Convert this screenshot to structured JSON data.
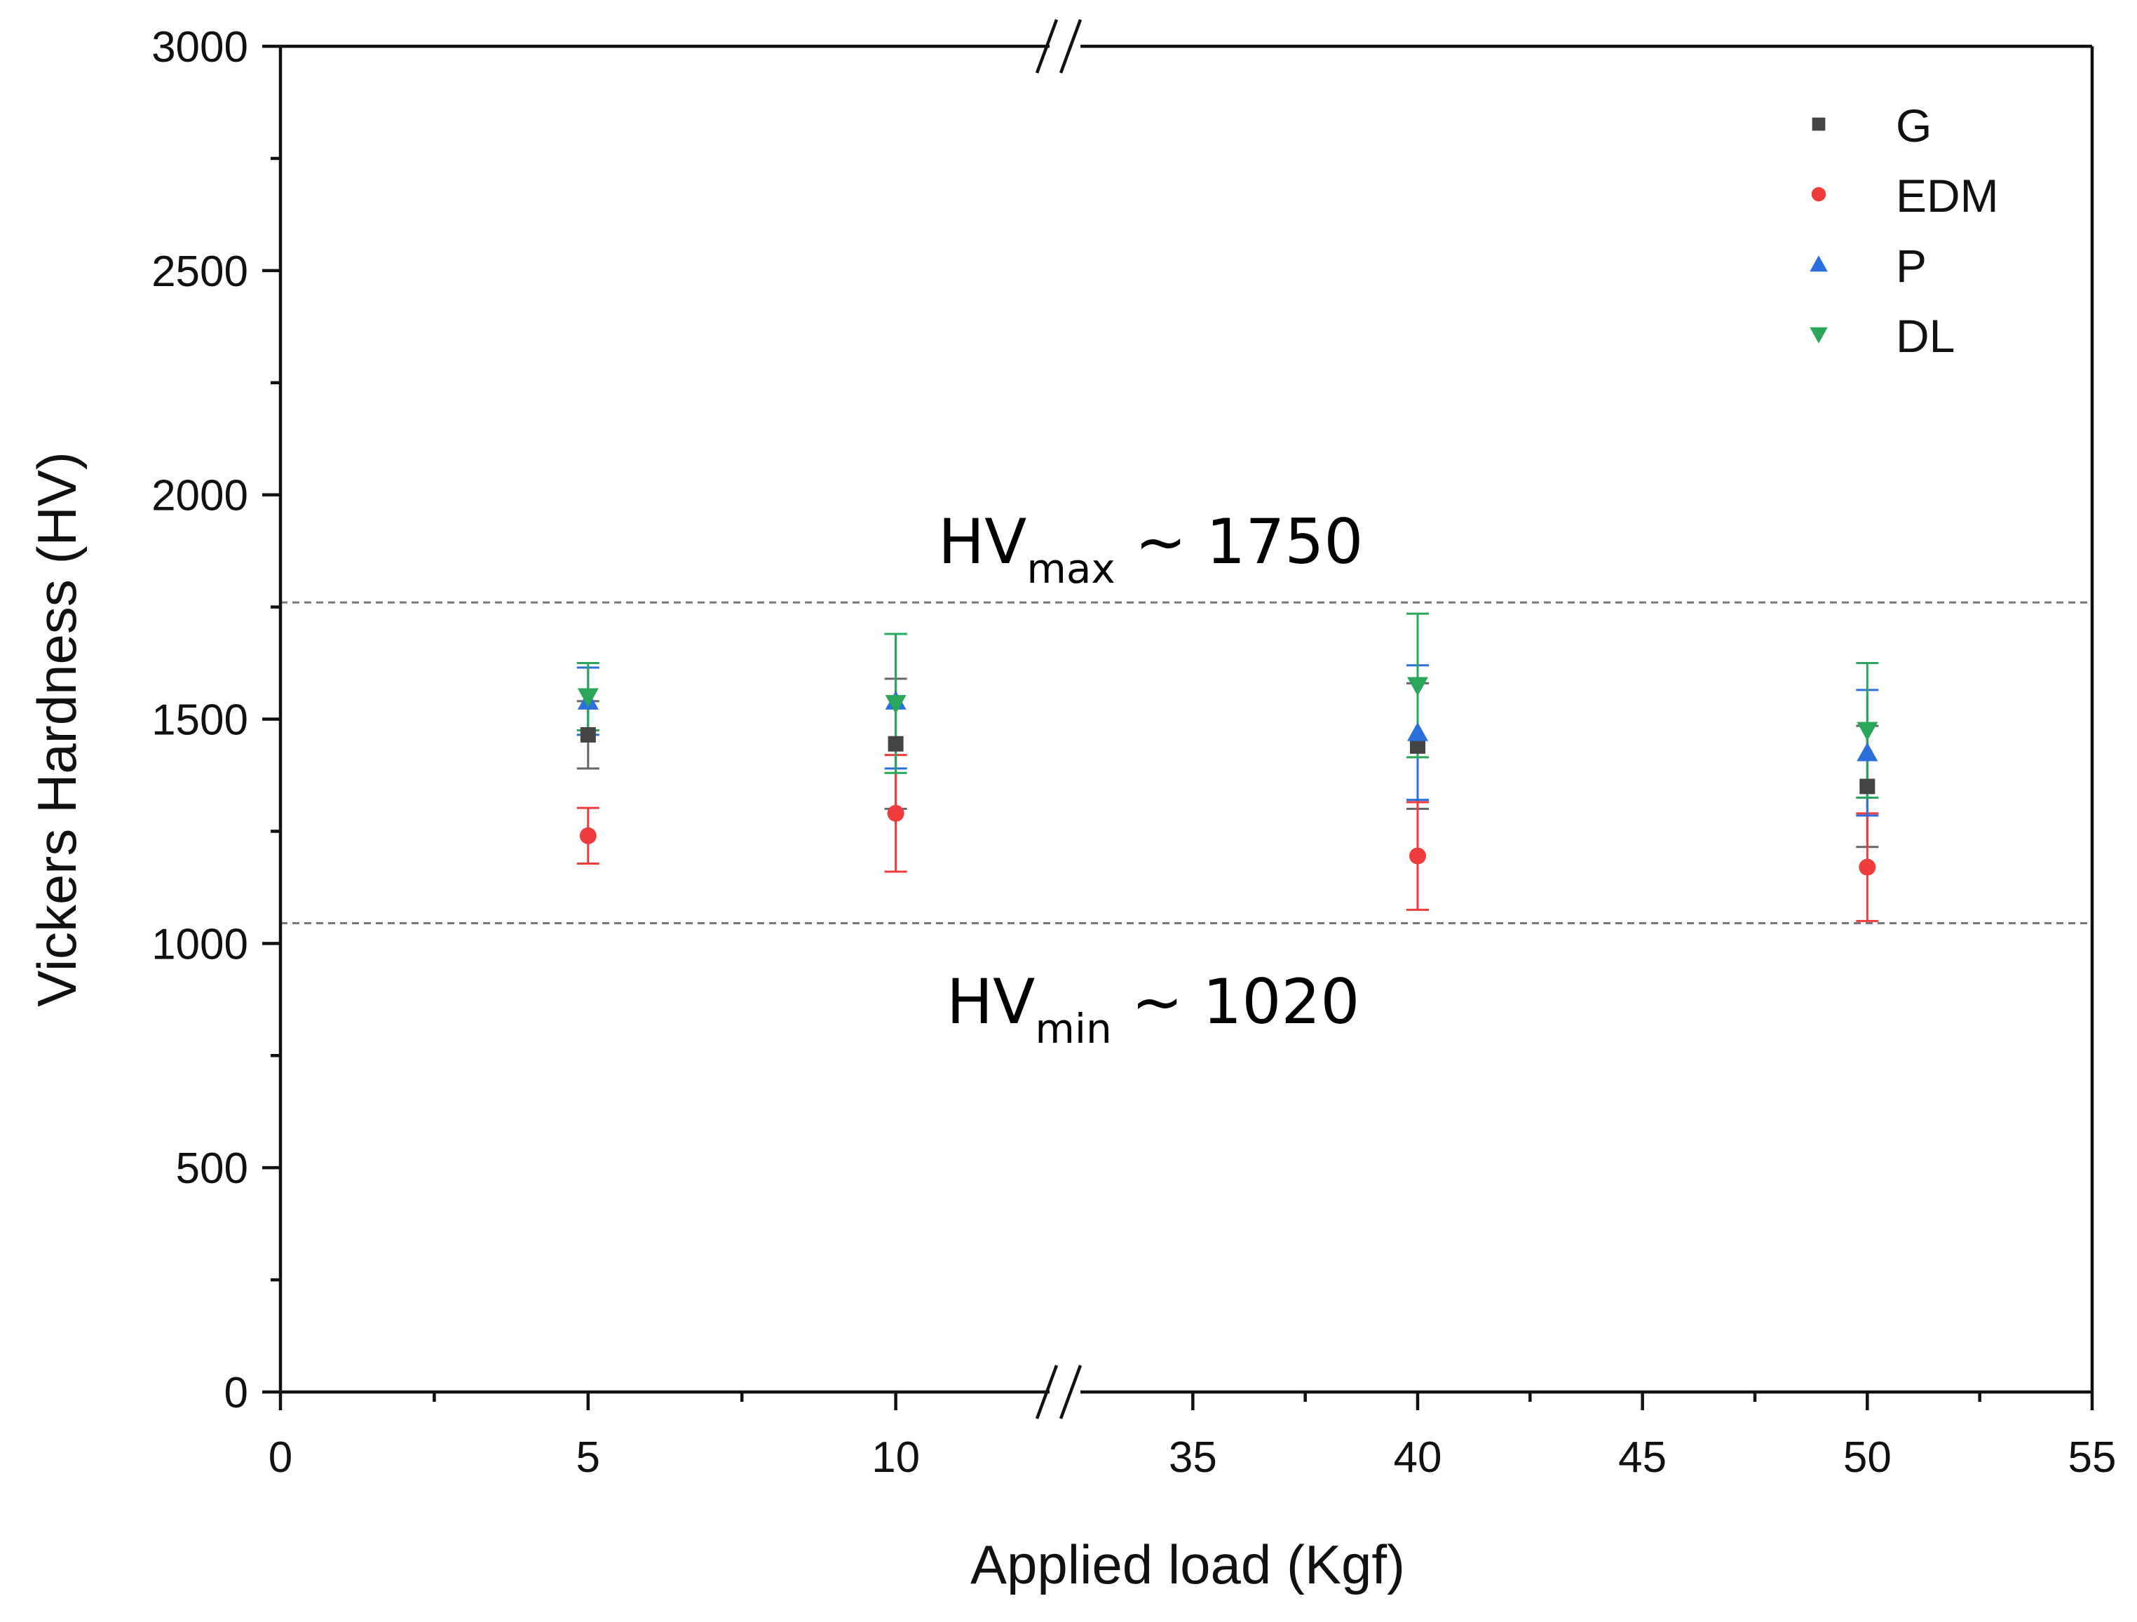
{
  "chart_data": {
    "type": "scatter",
    "title": "",
    "xlabel": "Applied load (Kgf)",
    "ylabel": "Vickers Hardness (HV)",
    "ylim": [
      0,
      3000
    ],
    "yticks": [
      0,
      500,
      1000,
      1500,
      2000,
      2500,
      3000
    ],
    "x_axis_break": {
      "from": 12.5,
      "to": 32.5
    },
    "x_segments": [
      {
        "data_min": 0,
        "data_max": 12.5
      },
      {
        "data_min": 32.5,
        "data_max": 55
      }
    ],
    "xticks": [
      0,
      5,
      10,
      35,
      40,
      45,
      50,
      55
    ],
    "xtick_labels": [
      "0",
      "5",
      "10",
      "35",
      "40",
      "45",
      "50",
      "55"
    ],
    "series": [
      {
        "name": "G",
        "marker": "square",
        "color": "#444444",
        "errcolor": "#666666",
        "points": [
          {
            "x": 5,
            "y": 1465,
            "err": 75
          },
          {
            "x": 10,
            "y": 1445,
            "err": 145
          },
          {
            "x": 40,
            "y": 1440,
            "err": 140
          },
          {
            "x": 50,
            "y": 1350,
            "err": 135
          }
        ]
      },
      {
        "name": "EDM",
        "marker": "circle",
        "color": "#ef3b3b",
        "errcolor": "#ef3b3b",
        "points": [
          {
            "x": 5,
            "y": 1240,
            "err": 62
          },
          {
            "x": 10,
            "y": 1290,
            "err": 130
          },
          {
            "x": 40,
            "y": 1195,
            "err": 120
          },
          {
            "x": 50,
            "y": 1170,
            "err": 120
          }
        ]
      },
      {
        "name": "P",
        "marker": "triangle-up",
        "color": "#2a6fdb",
        "errcolor": "#2a6fdb",
        "points": [
          {
            "x": 5,
            "y": 1540,
            "err": 75
          },
          {
            "x": 10,
            "y": 1540,
            "err": 150
          },
          {
            "x": 40,
            "y": 1470,
            "err": 150
          },
          {
            "x": 50,
            "y": 1425,
            "err": 140
          }
        ]
      },
      {
        "name": "DL",
        "marker": "triangle-down",
        "color": "#2aa65a",
        "errcolor": "#2aa65a",
        "points": [
          {
            "x": 5,
            "y": 1550,
            "err": 75
          },
          {
            "x": 10,
            "y": 1535,
            "err": 155
          },
          {
            "x": 40,
            "y": 1575,
            "err": 160
          },
          {
            "x": 50,
            "y": 1475,
            "err": 150
          }
        ]
      }
    ],
    "reference_lines": [
      {
        "y": 1760,
        "style": "dashed"
      },
      {
        "y": 1045,
        "style": "dashed"
      }
    ],
    "annotations": {
      "max_main": "HV",
      "max_sub": "max",
      "max_rest": " ~ 1750",
      "min_main": "HV",
      "min_sub": "min",
      "min_rest": " ~ 1020"
    },
    "legend": {
      "position": "top-right"
    }
  }
}
